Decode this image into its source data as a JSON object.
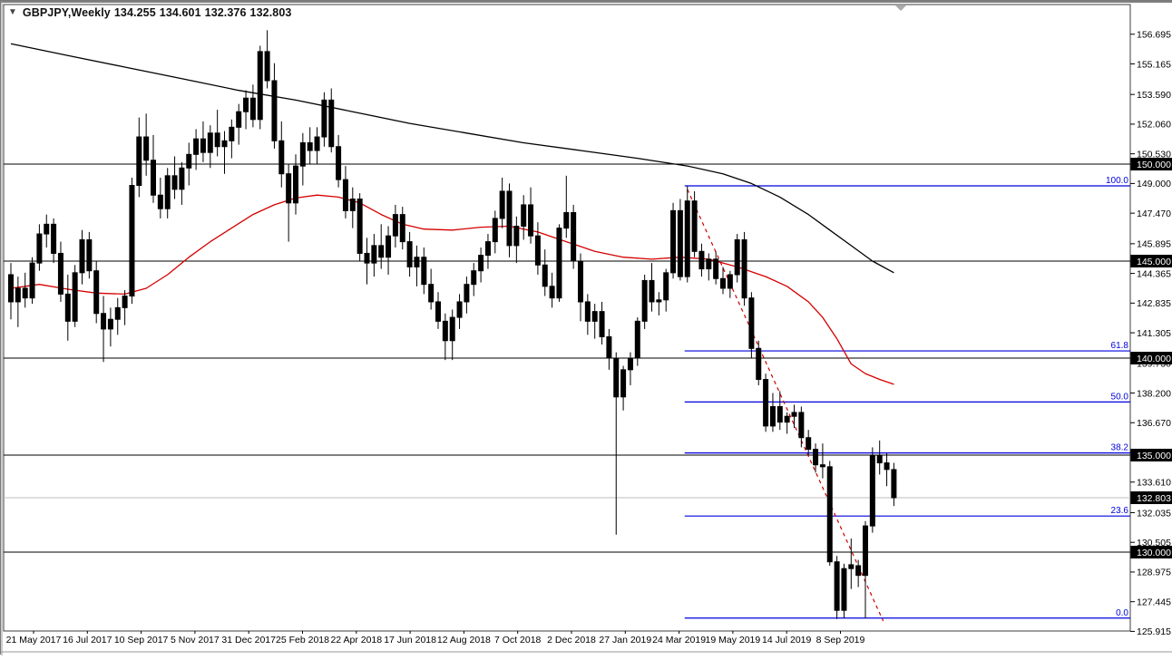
{
  "header": {
    "dropdown_icon": "▼",
    "symbol_period": "GBPJPY,Weekly",
    "quote_open": "134.255",
    "quote_high": "134.601",
    "quote_low": "132.376",
    "quote_close": "132.803"
  },
  "colors": {
    "background": "#ffffff",
    "up_candle": "#00c300",
    "down_candle": "#000000",
    "candle_outline": "#000000",
    "ma_slow": "#000000",
    "ma_fast": "#d40000",
    "trendline": "#cc0000",
    "fib_line": "#0000dd",
    "level_line": "#000000",
    "current_price_line": "#bdbdbd",
    "axis_text": "#000000",
    "price_box_bg": "#000000",
    "price_box_text": "#ffffff",
    "border": "#3c3c3c",
    "shift_marker": "#aaaaaa"
  },
  "y_axis": {
    "ticks": [
      "156.695",
      "155.165",
      "153.590",
      "152.060",
      "150.530",
      "149.000",
      "147.470",
      "145.895",
      "144.365",
      "142.835",
      "141.305",
      "139.730",
      "138.200",
      "136.670",
      "135.140",
      "133.610",
      "132.035",
      "130.505",
      "128.975",
      "127.445",
      "125.915"
    ],
    "level_boxes": [
      "150.000",
      "145.000",
      "140.000",
      "135.000",
      "130.000"
    ],
    "current_price_box": "132.803"
  },
  "x_axis": {
    "labels": [
      "21 May 2017",
      "16 Jul 2017",
      "10 Sep 2017",
      "5 Nov 2017",
      "31 Dec 2017",
      "25 Feb 2018",
      "22 Apr 2018",
      "17 Jun 2018",
      "12 Aug 2018",
      "7 Oct 2018",
      "2 Dec 2018",
      "27 Jan 2019",
      "24 Mar 2019",
      "19 May 2019",
      "14 Jul 2019",
      "8 Sep 2019"
    ]
  },
  "fibonacci": {
    "retracement_high": 148.88,
    "retracement_low": 126.6,
    "anchor_index": 95,
    "levels": [
      {
        "label": "100.0",
        "price": 148.88
      },
      {
        "label": "61.8",
        "price": 140.37
      },
      {
        "label": "50.0",
        "price": 137.74
      },
      {
        "label": "38.2",
        "price": 135.11
      },
      {
        "label": "23.6",
        "price": 131.86
      },
      {
        "label": "0.0",
        "price": 126.6
      }
    ]
  },
  "chart_data": {
    "type": "candlestick",
    "title": "GBPJPY,Weekly 134.255 134.601 132.376 132.803",
    "symbol": "GBPJPY",
    "timeframe": "Weekly",
    "start_date": "2017-05-14",
    "interval": "1 week",
    "ylim": [
      125.9,
      157.2
    ],
    "grid": false,
    "legend_position": "none",
    "ohlc": [
      [
        144.3,
        144.9,
        142.0,
        142.9
      ],
      [
        142.9,
        144.2,
        141.6,
        143.6
      ],
      [
        143.6,
        144.4,
        142.6,
        143.1
      ],
      [
        143.1,
        145.2,
        142.8,
        144.9
      ],
      [
        144.9,
        146.9,
        144.5,
        146.4
      ],
      [
        146.4,
        147.4,
        145.7,
        146.9
      ],
      [
        146.9,
        147.2,
        144.9,
        145.4
      ],
      [
        145.4,
        146.0,
        142.9,
        143.3
      ],
      [
        143.3,
        144.3,
        140.9,
        141.9
      ],
      [
        141.9,
        144.8,
        141.6,
        144.4
      ],
      [
        144.4,
        146.6,
        143.8,
        146.1
      ],
      [
        146.1,
        146.5,
        144.1,
        144.5
      ],
      [
        144.5,
        145.0,
        141.8,
        142.3
      ],
      [
        142.3,
        143.2,
        139.8,
        141.5
      ],
      [
        141.5,
        142.6,
        140.6,
        142.0
      ],
      [
        142.0,
        143.1,
        141.2,
        142.6
      ],
      [
        142.6,
        143.5,
        141.7,
        143.2
      ],
      [
        143.2,
        149.3,
        142.8,
        148.9
      ],
      [
        148.9,
        152.4,
        148.3,
        151.4
      ],
      [
        151.4,
        152.6,
        149.4,
        150.2
      ],
      [
        150.2,
        151.5,
        148.0,
        148.4
      ],
      [
        148.4,
        149.3,
        147.2,
        147.7
      ],
      [
        147.7,
        149.8,
        147.2,
        149.4
      ],
      [
        149.4,
        150.4,
        148.2,
        148.7
      ],
      [
        148.7,
        150.1,
        147.9,
        149.8
      ],
      [
        149.8,
        151.1,
        148.9,
        150.5
      ],
      [
        150.5,
        151.8,
        149.7,
        151.3
      ],
      [
        151.3,
        152.2,
        150.1,
        150.6
      ],
      [
        150.6,
        152.0,
        149.8,
        151.6
      ],
      [
        151.6,
        152.8,
        150.4,
        150.9
      ],
      [
        150.9,
        151.7,
        149.5,
        151.2
      ],
      [
        151.2,
        152.3,
        150.3,
        151.9
      ],
      [
        151.9,
        153.1,
        151.0,
        152.7
      ],
      [
        152.7,
        153.8,
        151.8,
        153.4
      ],
      [
        153.4,
        154.1,
        151.9,
        152.3
      ],
      [
        152.3,
        156.1,
        151.8,
        155.8
      ],
      [
        155.8,
        156.9,
        153.9,
        154.3
      ],
      [
        154.3,
        155.2,
        150.8,
        151.2
      ],
      [
        151.2,
        152.2,
        148.8,
        149.5
      ],
      [
        149.5,
        150.0,
        146.0,
        148.0
      ],
      [
        148.0,
        150.5,
        147.4,
        149.9
      ],
      [
        149.9,
        151.6,
        148.9,
        151.1
      ],
      [
        151.1,
        151.9,
        150.0,
        150.7
      ],
      [
        150.7,
        151.9,
        150.0,
        151.4
      ],
      [
        151.4,
        153.7,
        150.9,
        153.3
      ],
      [
        153.3,
        153.9,
        150.6,
        150.9
      ],
      [
        150.9,
        151.5,
        148.8,
        149.2
      ],
      [
        149.2,
        149.9,
        147.2,
        147.6
      ],
      [
        147.6,
        148.8,
        146.7,
        148.2
      ],
      [
        148.2,
        148.5,
        145.0,
        145.4
      ],
      [
        145.4,
        146.2,
        143.8,
        144.9
      ],
      [
        144.9,
        146.4,
        144.2,
        145.8
      ],
      [
        145.8,
        146.9,
        144.6,
        145.2
      ],
      [
        145.2,
        146.8,
        144.3,
        146.3
      ],
      [
        146.3,
        147.9,
        145.7,
        147.4
      ],
      [
        147.4,
        147.8,
        145.6,
        146.0
      ],
      [
        146.0,
        146.5,
        144.2,
        144.7
      ],
      [
        144.7,
        145.8,
        143.7,
        145.2
      ],
      [
        145.2,
        145.7,
        143.3,
        143.8
      ],
      [
        143.8,
        144.6,
        142.5,
        142.9
      ],
      [
        142.9,
        143.4,
        141.5,
        141.9
      ],
      [
        141.9,
        142.3,
        139.9,
        140.9
      ],
      [
        140.9,
        142.5,
        139.9,
        142.1
      ],
      [
        142.1,
        143.3,
        141.5,
        142.9
      ],
      [
        142.9,
        144.2,
        142.3,
        143.8
      ],
      [
        143.8,
        144.9,
        143.2,
        144.5
      ],
      [
        144.5,
        145.7,
        143.9,
        145.3
      ],
      [
        145.3,
        146.4,
        144.6,
        146.0
      ],
      [
        146.0,
        147.6,
        145.4,
        147.2
      ],
      [
        147.2,
        149.3,
        146.7,
        148.6
      ],
      [
        148.6,
        149.0,
        145.2,
        145.8
      ],
      [
        145.8,
        147.3,
        144.9,
        146.8
      ],
      [
        146.8,
        148.4,
        146.1,
        147.9
      ],
      [
        147.9,
        148.8,
        145.9,
        146.3
      ],
      [
        146.3,
        147.0,
        144.3,
        144.8
      ],
      [
        144.8,
        145.6,
        143.2,
        143.7
      ],
      [
        143.7,
        144.4,
        142.6,
        143.1
      ],
      [
        143.1,
        146.9,
        142.9,
        146.7
      ],
      [
        146.7,
        149.4,
        146.2,
        147.5
      ],
      [
        147.5,
        147.9,
        144.6,
        145.0
      ],
      [
        145.0,
        145.4,
        141.9,
        142.9
      ],
      [
        142.9,
        143.3,
        141.2,
        141.9
      ],
      [
        141.9,
        142.8,
        141.0,
        142.4
      ],
      [
        142.4,
        142.9,
        140.7,
        141.1
      ],
      [
        141.1,
        141.5,
        139.4,
        140.0
      ],
      [
        140.0,
        140.3,
        130.9,
        138.0
      ],
      [
        138.0,
        139.6,
        137.3,
        139.4
      ],
      [
        139.4,
        140.3,
        138.6,
        140.0
      ],
      [
        140.0,
        142.1,
        139.6,
        141.9
      ],
      [
        141.9,
        144.3,
        141.5,
        144.0
      ],
      [
        144.0,
        144.9,
        142.4,
        142.9
      ],
      [
        142.9,
        143.4,
        142.2,
        143.0
      ],
      [
        143.0,
        144.6,
        142.4,
        144.4
      ],
      [
        144.4,
        148.0,
        144.1,
        147.6
      ],
      [
        147.6,
        148.2,
        144.0,
        144.2
      ],
      [
        144.2,
        148.87,
        143.9,
        148.1
      ],
      [
        148.1,
        148.6,
        145.2,
        145.5
      ],
      [
        145.5,
        145.9,
        144.2,
        144.6
      ],
      [
        144.6,
        145.4,
        144.0,
        145.1
      ],
      [
        145.1,
        145.5,
        143.8,
        144.1
      ],
      [
        144.1,
        144.7,
        143.3,
        143.6
      ],
      [
        143.6,
        144.5,
        143.1,
        144.3
      ],
      [
        144.3,
        146.4,
        143.9,
        146.1
      ],
      [
        146.1,
        146.5,
        142.7,
        143.1
      ],
      [
        143.1,
        143.4,
        140.0,
        140.5
      ],
      [
        140.5,
        140.9,
        138.6,
        138.9
      ],
      [
        138.9,
        139.2,
        136.2,
        136.5
      ],
      [
        136.5,
        138.2,
        136.2,
        137.5
      ],
      [
        137.5,
        138.3,
        136.3,
        136.7
      ],
      [
        136.7,
        137.2,
        136.1,
        137.0
      ],
      [
        137.0,
        137.6,
        136.4,
        137.2
      ],
      [
        137.2,
        137.5,
        135.4,
        135.9
      ],
      [
        135.9,
        136.3,
        135.0,
        135.3
      ],
      [
        135.3,
        135.6,
        134.1,
        134.5
      ],
      [
        134.5,
        135.6,
        133.8,
        134.4
      ],
      [
        134.4,
        134.7,
        129.3,
        129.5
      ],
      [
        129.5,
        129.8,
        126.55,
        127.0
      ],
      [
        127.0,
        129.4,
        126.6,
        129.15
      ],
      [
        129.15,
        130.7,
        128.1,
        129.35
      ],
      [
        128.8,
        129.6,
        128.2,
        129.3
      ],
      [
        128.8,
        131.6,
        126.6,
        131.35
      ],
      [
        131.35,
        135.4,
        131.0,
        135.0
      ],
      [
        135.0,
        135.75,
        134.0,
        134.6
      ],
      [
        134.6,
        135.1,
        133.4,
        134.26
      ],
      [
        134.255,
        134.601,
        132.376,
        132.803
      ]
    ],
    "overlays": {
      "ma_slow_black": {
        "type": "line",
        "color": "#000000",
        "points": [
          [
            0,
            156.2
          ],
          [
            8,
            155.6
          ],
          [
            16,
            155.0
          ],
          [
            24,
            154.4
          ],
          [
            32,
            153.8
          ],
          [
            40,
            153.3
          ],
          [
            48,
            152.7
          ],
          [
            56,
            152.1
          ],
          [
            64,
            151.6
          ],
          [
            72,
            151.1
          ],
          [
            80,
            150.7
          ],
          [
            88,
            150.3
          ],
          [
            95,
            149.9
          ],
          [
            100,
            149.5
          ],
          [
            104,
            149.0
          ],
          [
            108,
            148.3
          ],
          [
            112,
            147.4
          ],
          [
            115,
            146.6
          ],
          [
            118,
            145.8
          ],
          [
            121,
            145.0
          ],
          [
            124,
            144.4
          ]
        ]
      },
      "ma_fast_red": {
        "type": "line",
        "color": "#d40000",
        "points": [
          [
            0,
            143.6
          ],
          [
            4,
            143.8
          ],
          [
            8,
            143.55
          ],
          [
            12,
            143.35
          ],
          [
            16,
            143.3
          ],
          [
            19,
            143.6
          ],
          [
            22,
            144.3
          ],
          [
            25,
            145.2
          ],
          [
            28,
            146.0
          ],
          [
            31,
            146.7
          ],
          [
            34,
            147.4
          ],
          [
            37,
            147.9
          ],
          [
            40,
            148.25
          ],
          [
            43,
            148.4
          ],
          [
            46,
            148.3
          ],
          [
            49,
            148.0
          ],
          [
            52,
            147.4
          ],
          [
            55,
            146.9
          ],
          [
            58,
            146.65
          ],
          [
            62,
            146.6
          ],
          [
            66,
            146.75
          ],
          [
            70,
            146.8
          ],
          [
            74,
            146.5
          ],
          [
            78,
            146.0
          ],
          [
            82,
            145.5
          ],
          [
            86,
            145.2
          ],
          [
            90,
            145.1
          ],
          [
            94,
            145.2
          ],
          [
            98,
            145.1
          ],
          [
            102,
            144.7
          ],
          [
            106,
            144.2
          ],
          [
            109,
            143.7
          ],
          [
            112,
            142.9
          ],
          [
            114,
            142.1
          ],
          [
            116,
            141.0
          ],
          [
            118,
            139.7
          ],
          [
            120,
            139.2
          ],
          [
            122,
            138.9
          ],
          [
            124,
            138.65
          ]
        ]
      },
      "trendline_dashed_red": {
        "from_index": 95,
        "from_price": 148.7,
        "to_index": 122.5,
        "to_price": 126.45
      },
      "horizontal_levels": [
        150,
        145,
        140,
        135,
        130
      ],
      "current_price_line": 132.803
    }
  }
}
